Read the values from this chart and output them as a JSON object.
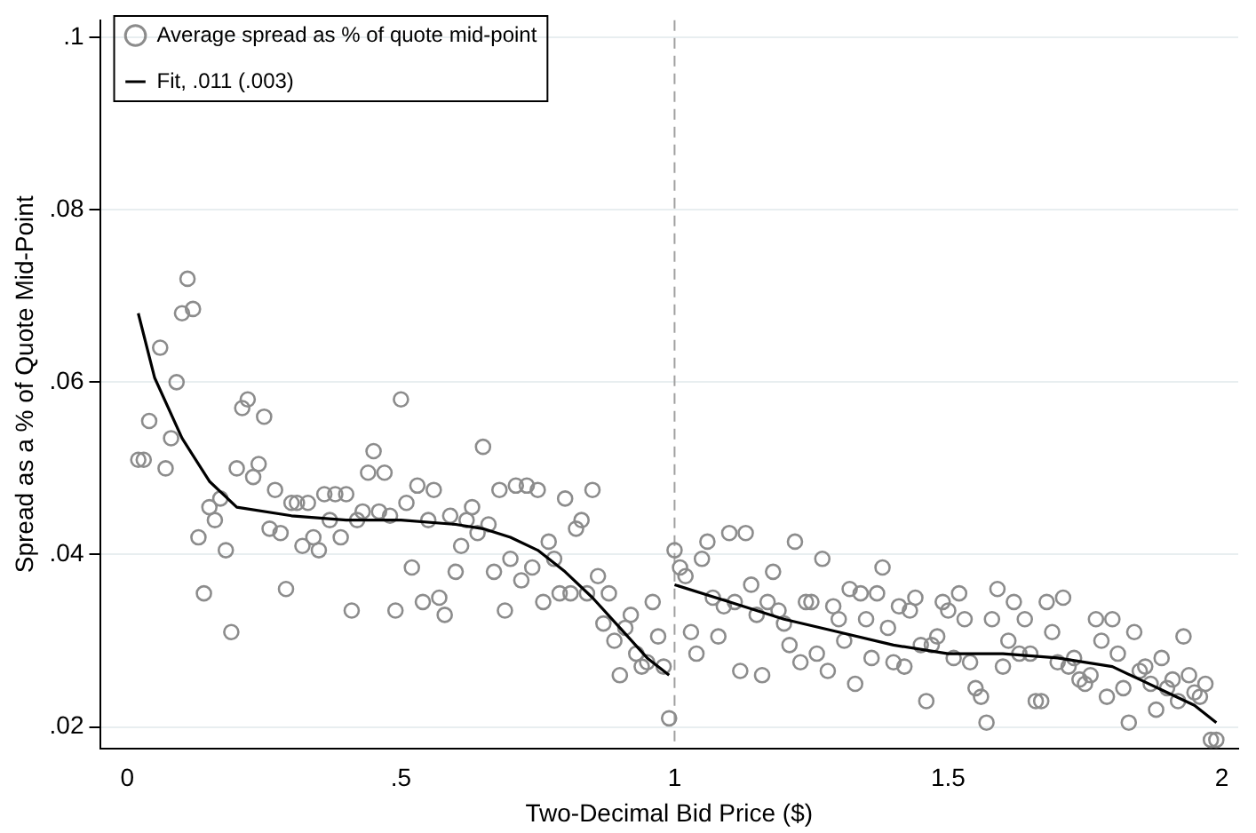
{
  "chart_data": {
    "type": "scatter",
    "xlabel": "Two-Decimal Bid Price ($)",
    "ylabel": "Spread as a % of Quote Mid-Point",
    "xlim": [
      -0.05,
      2.03
    ],
    "ylim": [
      0.0175,
      0.102
    ],
    "xticks": [
      0,
      {
        "value": 0.5,
        "label": ".5"
      },
      1,
      {
        "value": 1.5,
        "label": "1.5"
      },
      2
    ],
    "yticks": [
      {
        "value": 0.02,
        "label": ".02"
      },
      {
        "value": 0.04,
        "label": ".04"
      },
      {
        "value": 0.06,
        "label": ".06"
      },
      {
        "value": 0.08,
        "label": ".08"
      },
      {
        "value": 0.1,
        "label": ".1"
      }
    ],
    "grid": "y",
    "legend": "top left",
    "marker": "circle",
    "ref_lines": [
      {
        "axis": "x",
        "value": 1,
        "color": "#a0a0a0",
        "line_style": "dashed"
      }
    ],
    "series": [
      {
        "name": "Average spread as % of quote mid-point",
        "color": "#8c8c8c",
        "x": [
          0.02,
          0.03,
          0.04,
          0.06,
          0.07,
          0.08,
          0.09,
          0.1,
          0.11,
          0.12,
          0.13,
          0.14,
          0.15,
          0.16,
          0.17,
          0.18,
          0.19,
          0.2,
          0.21,
          0.22,
          0.23,
          0.24,
          0.25,
          0.26,
          0.27,
          0.28,
          0.29,
          0.3,
          0.31,
          0.32,
          0.33,
          0.34,
          0.35,
          0.36,
          0.37,
          0.38,
          0.39,
          0.4,
          0.41,
          0.42,
          0.43,
          0.44,
          0.45,
          0.46,
          0.47,
          0.48,
          0.49,
          0.5,
          0.51,
          0.52,
          0.53,
          0.54,
          0.55,
          0.56,
          0.57,
          0.58,
          0.59,
          0.6,
          0.61,
          0.62,
          0.63,
          0.64,
          0.65,
          0.66,
          0.67,
          0.68,
          0.69,
          0.7,
          0.71,
          0.72,
          0.73,
          0.74,
          0.75,
          0.76,
          0.77,
          0.78,
          0.79,
          0.8,
          0.81,
          0.82,
          0.83,
          0.84,
          0.85,
          0.86,
          0.87,
          0.88,
          0.89,
          0.9,
          0.91,
          0.92,
          0.93,
          0.94,
          0.95,
          0.96,
          0.97,
          0.98,
          0.99,
          1.0,
          1.01,
          1.02,
          1.03,
          1.04,
          1.05,
          1.06,
          1.07,
          1.08,
          1.09,
          1.1,
          1.11,
          1.12,
          1.13,
          1.14,
          1.15,
          1.16,
          1.17,
          1.18,
          1.19,
          1.2,
          1.21,
          1.22,
          1.23,
          1.24,
          1.25,
          1.26,
          1.27,
          1.28,
          1.29,
          1.3,
          1.31,
          1.32,
          1.33,
          1.34,
          1.35,
          1.36,
          1.37,
          1.38,
          1.39,
          1.4,
          1.41,
          1.42,
          1.43,
          1.44,
          1.45,
          1.46,
          1.47,
          1.48,
          1.49,
          1.5,
          1.51,
          1.52,
          1.53,
          1.54,
          1.55,
          1.56,
          1.57,
          1.58,
          1.59,
          1.6,
          1.61,
          1.62,
          1.63,
          1.64,
          1.65,
          1.66,
          1.67,
          1.68,
          1.69,
          1.7,
          1.71,
          1.72,
          1.73,
          1.74,
          1.75,
          1.76,
          1.77,
          1.78,
          1.79,
          1.8,
          1.81,
          1.82,
          1.83,
          1.84,
          1.85,
          1.86,
          1.87,
          1.88,
          1.89,
          1.9,
          1.91,
          1.92,
          1.93,
          1.94,
          1.95,
          1.96,
          1.97,
          1.98,
          1.99
        ],
        "values": [
          0.051,
          0.051,
          0.0555,
          0.064,
          0.05,
          0.0535,
          0.06,
          0.068,
          0.072,
          0.0685,
          0.042,
          0.0355,
          0.0455,
          0.044,
          0.0465,
          0.0405,
          0.031,
          0.05,
          0.057,
          0.058,
          0.049,
          0.0505,
          0.056,
          0.043,
          0.0475,
          0.0425,
          0.036,
          0.046,
          0.046,
          0.041,
          0.046,
          0.042,
          0.0405,
          0.047,
          0.044,
          0.047,
          0.042,
          0.047,
          0.0335,
          0.044,
          0.045,
          0.0495,
          0.052,
          0.045,
          0.0495,
          0.0445,
          0.0335,
          0.058,
          0.046,
          0.0385,
          0.048,
          0.0345,
          0.044,
          0.0475,
          0.035,
          0.033,
          0.0445,
          0.038,
          0.041,
          0.044,
          0.0455,
          0.0425,
          0.0525,
          0.0435,
          0.038,
          0.0475,
          0.0335,
          0.0395,
          0.048,
          0.037,
          0.048,
          0.0385,
          0.0475,
          0.0345,
          0.0415,
          0.0395,
          0.0355,
          0.0465,
          0.0355,
          0.043,
          0.044,
          0.0355,
          0.0475,
          0.0375,
          0.032,
          0.0355,
          0.03,
          0.026,
          0.0315,
          0.033,
          0.0285,
          0.027,
          0.0275,
          0.0345,
          0.0305,
          0.027,
          0.021,
          0.0405,
          0.0385,
          0.0375,
          0.031,
          0.0285,
          0.0395,
          0.0415,
          0.035,
          0.0305,
          0.034,
          0.0425,
          0.0345,
          0.0265,
          0.0425,
          0.0365,
          0.033,
          0.026,
          0.0345,
          0.038,
          0.0335,
          0.032,
          0.0295,
          0.0415,
          0.0275,
          0.0345,
          0.0345,
          0.0285,
          0.0395,
          0.0265,
          0.034,
          0.0325,
          0.03,
          0.036,
          0.025,
          0.0355,
          0.0325,
          0.028,
          0.0355,
          0.0385,
          0.0315,
          0.0275,
          0.034,
          0.027,
          0.0335,
          0.035,
          0.0295,
          0.023,
          0.0295,
          0.0305,
          0.0345,
          0.0335,
          0.028,
          0.0355,
          0.0325,
          0.0275,
          0.0245,
          0.0235,
          0.0205,
          0.0325,
          0.036,
          0.027,
          0.03,
          0.0345,
          0.0285,
          0.0325,
          0.0285,
          0.023,
          0.023,
          0.0345,
          0.031,
          0.0275,
          0.035,
          0.027,
          0.028,
          0.0255,
          0.025,
          0.026,
          0.0325,
          0.03,
          0.0235,
          0.0325,
          0.0285,
          0.0245,
          0.0205,
          0.031,
          0.0265,
          0.027,
          0.025,
          0.022,
          0.028,
          0.0245,
          0.0255,
          0.023,
          0.0305,
          0.026,
          0.024,
          0.0235,
          0.025,
          0.0185,
          0.0185
        ]
      },
      {
        "name": "Fit, .011 (.003)",
        "type": "line",
        "color": "#000000",
        "marker": "none",
        "line_style": "solid",
        "x": [
          0.02,
          0.05,
          0.1,
          0.15,
          0.2,
          0.3,
          0.4,
          0.5,
          0.6,
          0.65,
          0.7,
          0.75,
          0.8,
          0.85,
          0.9,
          0.95,
          0.99,
          0.995,
          1.0,
          1.1,
          1.2,
          1.3,
          1.4,
          1.5,
          1.6,
          1.7,
          1.8,
          1.85,
          1.9,
          1.95,
          1.99
        ],
        "values": [
          0.068,
          0.0605,
          0.0535,
          0.0485,
          0.0455,
          0.0445,
          0.044,
          0.044,
          0.0435,
          0.043,
          0.042,
          0.0405,
          0.038,
          0.035,
          0.0315,
          0.028,
          0.026,
          null,
          0.0365,
          0.0345,
          0.0325,
          0.031,
          0.0295,
          0.0285,
          0.0285,
          0.028,
          0.027,
          0.0255,
          0.024,
          0.0225,
          0.0205
        ]
      }
    ]
  }
}
